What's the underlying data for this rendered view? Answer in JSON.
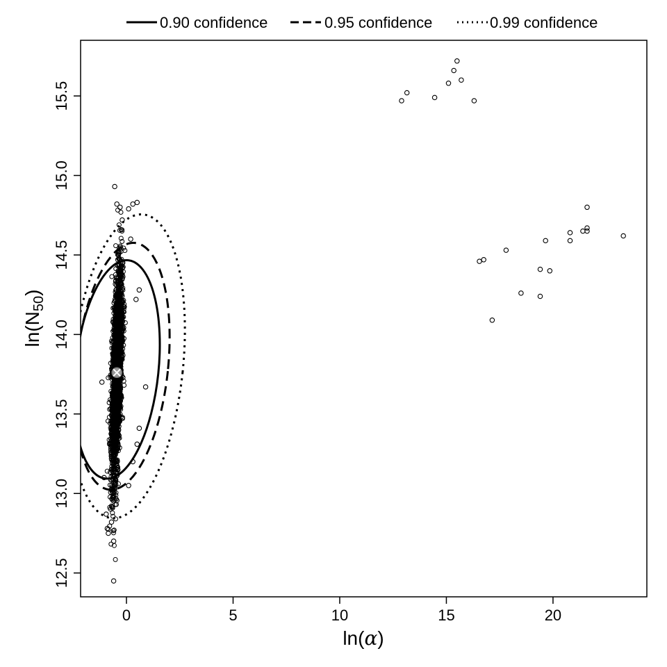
{
  "chart_data": {
    "type": "scatter",
    "title": "",
    "xlabel": {
      "base": "ln(",
      "symbol": "α",
      "close": ")"
    },
    "ylabel": {
      "base": "ln(N",
      "sub": "50",
      "close": ")"
    },
    "xlim": [
      -2.15,
      24.4
    ],
    "ylim": [
      12.35,
      15.85
    ],
    "x_ticks": [
      0,
      5,
      10,
      15,
      20
    ],
    "y_ticks": [
      12.5,
      13.0,
      13.5,
      14.0,
      14.5,
      15.0,
      15.5
    ],
    "x_tick_labels": [
      "0",
      "5",
      "10",
      "15",
      "20"
    ],
    "y_tick_labels": [
      "12.5",
      "13.0",
      "13.5",
      "14.0",
      "14.5",
      "15.0",
      "15.5"
    ],
    "grid": false,
    "legend_position": "top, outside plot",
    "legend": [
      {
        "label": "0.90 confidence",
        "style": "solid"
      },
      {
        "label": "0.95 confidence",
        "style": "dashed"
      },
      {
        "label": "0.99 confidence",
        "style": "dotted"
      }
    ],
    "best_fit": {
      "x": -0.45,
      "y": 13.76,
      "marker": "circled-x",
      "color": "#999999"
    },
    "confidence_ellipses": [
      {
        "level": 0.9,
        "style": "solid",
        "center": [
          -0.45,
          13.78
        ],
        "x_half_width": 1.95,
        "y_half_width": 0.69,
        "tilt_deg": 6
      },
      {
        "level": 0.95,
        "style": "dashed",
        "center": [
          -0.2,
          13.8
        ],
        "x_half_width": 2.15,
        "y_half_width": 0.78,
        "tilt_deg": 6
      },
      {
        "level": 0.99,
        "style": "dotted",
        "center": [
          0.05,
          13.8
        ],
        "x_half_width": 2.6,
        "y_half_width": 0.96,
        "tilt_deg": 6
      }
    ],
    "cluster": {
      "description": "dense bootstrap cloud",
      "center": [
        -0.45,
        13.76
      ],
      "x_sd": 0.12,
      "y_sd": 0.32,
      "count": 2600,
      "correlation": 0.55
    },
    "points": [
      [
        -0.55,
        14.93
      ],
      [
        -0.45,
        14.82
      ],
      [
        0.3,
        14.82
      ],
      [
        0.5,
        14.83
      ],
      [
        0.1,
        14.79
      ],
      [
        -0.3,
        14.8
      ],
      [
        -0.2,
        14.72
      ],
      [
        0.2,
        14.6
      ],
      [
        0.6,
        14.28
      ],
      [
        0.45,
        14.22
      ],
      [
        0.9,
        13.67
      ],
      [
        0.6,
        13.41
      ],
      [
        0.5,
        13.31
      ],
      [
        0.3,
        13.2
      ],
      [
        0.1,
        13.05
      ],
      [
        -1.15,
        13.7
      ],
      [
        -0.9,
        12.78
      ],
      [
        -0.85,
        12.75
      ],
      [
        -0.6,
        12.7
      ],
      [
        -0.6,
        12.45
      ],
      [
        -0.95,
        12.87
      ],
      [
        -0.7,
        12.82
      ],
      [
        -1.05,
        13.1
      ],
      [
        12.9,
        15.47
      ],
      [
        13.15,
        15.52
      ],
      [
        14.45,
        15.49
      ],
      [
        15.1,
        15.58
      ],
      [
        15.35,
        15.66
      ],
      [
        15.5,
        15.72
      ],
      [
        15.7,
        15.6
      ],
      [
        16.3,
        15.47
      ],
      [
        16.55,
        14.46
      ],
      [
        16.75,
        14.47
      ],
      [
        17.15,
        14.09
      ],
      [
        17.8,
        14.53
      ],
      [
        18.5,
        14.26
      ],
      [
        19.4,
        14.24
      ],
      [
        19.4,
        14.41
      ],
      [
        19.65,
        14.59
      ],
      [
        19.85,
        14.4
      ],
      [
        20.8,
        14.64
      ],
      [
        20.8,
        14.59
      ],
      [
        21.4,
        14.65
      ],
      [
        21.6,
        14.67
      ],
      [
        21.6,
        14.65
      ],
      [
        21.6,
        14.8
      ],
      [
        23.3,
        14.62
      ]
    ]
  }
}
